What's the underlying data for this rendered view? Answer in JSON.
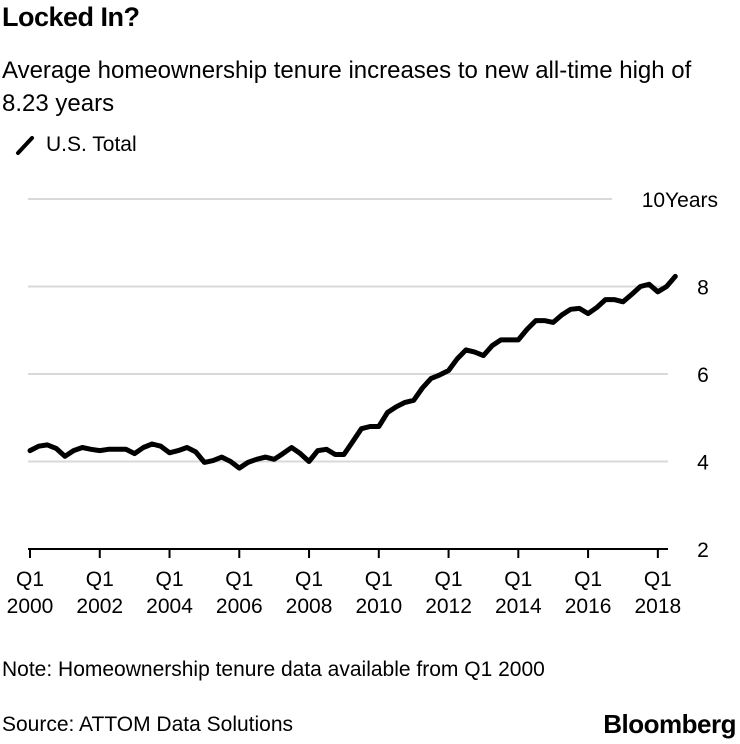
{
  "header": {
    "title": "Locked In?",
    "subtitle": "Average homeownership tenure increases to new all-time high of 8.23 years"
  },
  "legend": {
    "label": "U.S. Total"
  },
  "footer": {
    "note": "Note: Homeownership tenure data available from Q1 2000",
    "source": "Source: ATTOM Data Solutions",
    "brand": "Bloomberg"
  },
  "colors": {
    "line": "#000000",
    "grid": "#d9d9d9",
    "axis": "#000000"
  },
  "chart_data": {
    "type": "line",
    "title": "Locked In?",
    "subtitle": "Average homeownership tenure increases to new all-time high of 8.23 years",
    "xlabel": "",
    "ylabel": "Years",
    "ylim": [
      2,
      10
    ],
    "yticks": [
      2,
      4,
      6,
      8,
      10
    ],
    "ytick_labels": [
      "2",
      "4",
      "6",
      "8",
      "10Years"
    ],
    "y_axis_side": "right",
    "grid": true,
    "legend_position": "top-left",
    "x_start": "2000 Q1",
    "x_frequency": "quarterly",
    "xticks": [
      {
        "quarter": "Q1",
        "year": "2000"
      },
      {
        "quarter": "Q1",
        "year": "2002"
      },
      {
        "quarter": "Q1",
        "year": "2004"
      },
      {
        "quarter": "Q1",
        "year": "2006"
      },
      {
        "quarter": "Q1",
        "year": "2008"
      },
      {
        "quarter": "Q1",
        "year": "2010"
      },
      {
        "quarter": "Q1",
        "year": "2012"
      },
      {
        "quarter": "Q1",
        "year": "2014"
      },
      {
        "quarter": "Q1",
        "year": "2016"
      },
      {
        "quarter": "Q1",
        "year": "2018"
      }
    ],
    "series": [
      {
        "name": "U.S. Total",
        "values": [
          4.25,
          4.35,
          4.38,
          4.3,
          4.12,
          4.25,
          4.32,
          4.28,
          4.25,
          4.28,
          4.28,
          4.28,
          4.18,
          4.32,
          4.4,
          4.35,
          4.2,
          4.25,
          4.32,
          4.22,
          3.98,
          4.02,
          4.1,
          4.0,
          3.85,
          3.98,
          4.05,
          4.1,
          4.05,
          4.18,
          4.32,
          4.18,
          4.0,
          4.25,
          4.28,
          4.16,
          4.16,
          4.45,
          4.75,
          4.8,
          4.8,
          5.12,
          5.25,
          5.35,
          5.4,
          5.68,
          5.9,
          5.98,
          6.08,
          6.35,
          6.55,
          6.5,
          6.42,
          6.65,
          6.78,
          6.78,
          6.78,
          7.02,
          7.22,
          7.22,
          7.18,
          7.35,
          7.48,
          7.5,
          7.38,
          7.52,
          7.7,
          7.7,
          7.65,
          7.82,
          8.0,
          8.05,
          7.88,
          8.0,
          8.23
        ]
      }
    ]
  }
}
